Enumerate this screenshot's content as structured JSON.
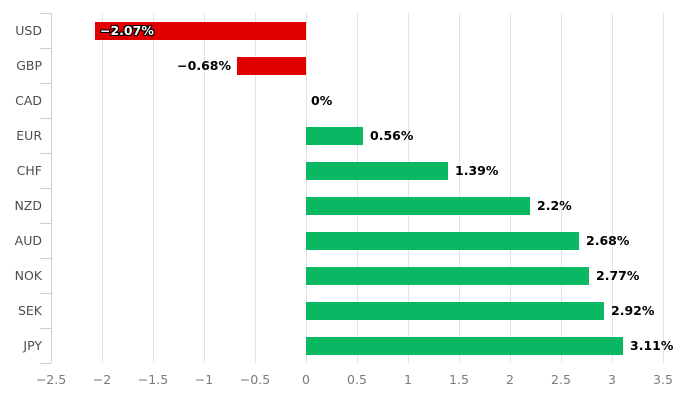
{
  "chart_data": {
    "type": "bar",
    "orientation": "horizontal",
    "title": "",
    "xlabel": "",
    "ylabel": "",
    "legend": "none",
    "grid": "vertical",
    "categories": [
      "USD",
      "GBP",
      "CAD",
      "EUR",
      "CHF",
      "NZD",
      "AUD",
      "NOK",
      "SEK",
      "JPY"
    ],
    "values": [
      -2.07,
      -0.68,
      0,
      0.56,
      1.39,
      2.2,
      2.68,
      2.77,
      2.92,
      3.11
    ],
    "value_labels": [
      "−2.07%",
      "−0.68%",
      "0%",
      "0.56%",
      "1.39%",
      "2.2%",
      "2.68%",
      "2.77%",
      "2.92%",
      "3.11%"
    ],
    "xlim": [
      -2.5,
      3.5
    ],
    "x_tick_values": [
      -2.5,
      -2,
      -1.5,
      -1,
      -0.5,
      0,
      0.5,
      1,
      1.5,
      2,
      2.5,
      3,
      3.5
    ],
    "x_tick_labels": [
      "−2.5",
      "−2",
      "−1.5",
      "−1",
      "−0.5",
      "0",
      "0.5",
      "1",
      "1.5",
      "2",
      "2.5",
      "3",
      "3.5"
    ],
    "colors": {
      "positive_bar": "#0ab864",
      "negative_bar": "#e00000",
      "gridline": "#e3e3e3",
      "axis_line": "#c6cfd8",
      "category_label": "#4d4d4d",
      "tick_label": "#7b7b7b",
      "value_label": "#000000",
      "inside_value_label": "#ffffff",
      "background": "#ffffff"
    }
  }
}
